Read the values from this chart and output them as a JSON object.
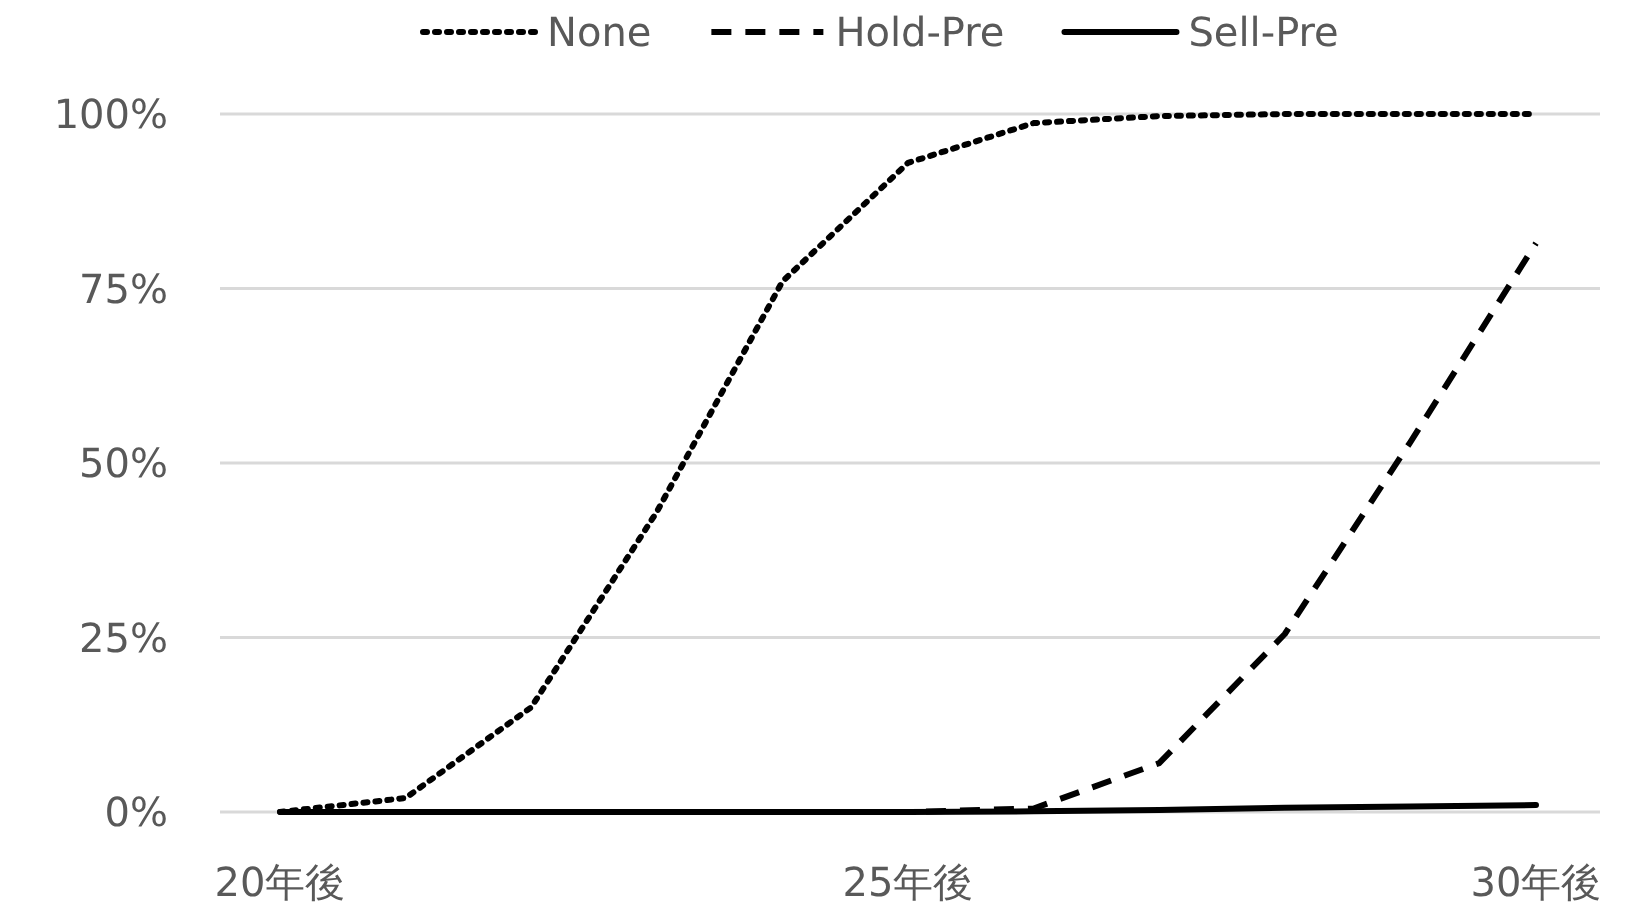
{
  "chart_data": {
    "type": "line",
    "categories": [
      "20年後",
      null,
      null,
      null,
      null,
      "25年後",
      null,
      null,
      null,
      null,
      "30年後"
    ],
    "series": [
      {
        "name": "None",
        "color": "#000000",
        "line_style": "dotted",
        "values": [
          0,
          2,
          15,
          43,
          76,
          93,
          98.7,
          99.7,
          100,
          100,
          100
        ]
      },
      {
        "name": "Hold-Pre",
        "color": "#000000",
        "line_style": "dashed",
        "values": [
          0,
          0,
          0,
          0,
          0,
          0,
          0.5,
          7,
          25.5,
          53,
          81.5
        ]
      },
      {
        "name": "Sell-Pre",
        "color": "#000000",
        "line_style": "solid",
        "values": [
          0,
          0,
          0,
          0,
          0,
          0,
          0.1,
          0.3,
          0.6,
          0.8,
          1
        ]
      }
    ],
    "ylim": [
      0,
      100
    ],
    "yticks": [
      {
        "value": 0,
        "label": "0%"
      },
      {
        "value": 25,
        "label": "25%"
      },
      {
        "value": 50,
        "label": "50%"
      },
      {
        "value": 75,
        "label": "75%"
      },
      {
        "value": 100,
        "label": "100%"
      }
    ],
    "grid": "y",
    "legend": "top",
    "marker": "none"
  }
}
